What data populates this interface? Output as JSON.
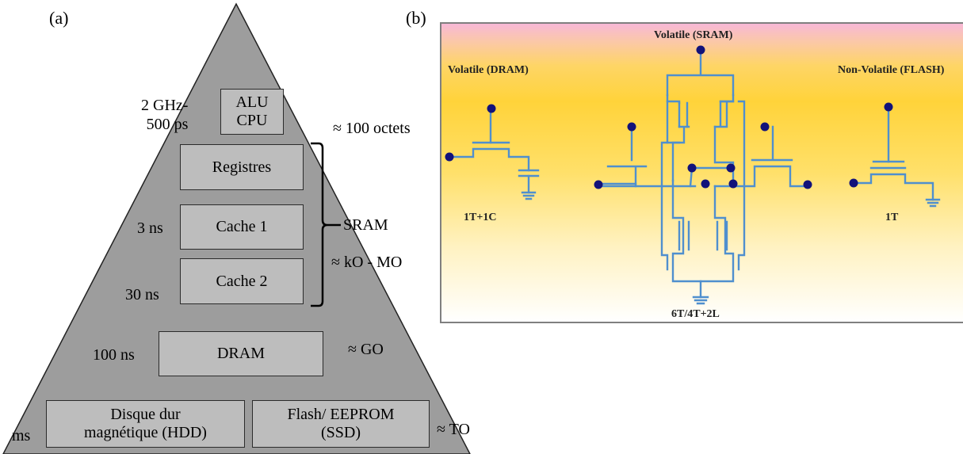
{
  "panel_a": {
    "label": "(a)",
    "levels": [
      {
        "name": "ALU\nCPU",
        "timing": "2 GHz-\n500 ps",
        "capacity": "≈ 100 octets"
      },
      {
        "name": "Registres"
      },
      {
        "name": "Cache 1",
        "timing": "3 ns"
      },
      {
        "name": "Cache 2",
        "timing": "30 ns"
      },
      {
        "name": "DRAM",
        "timing": "100 ns",
        "capacity": "≈ GO"
      },
      {
        "name": "Disque dur\nmagnétique (HDD)",
        "timing": "ms"
      },
      {
        "name": "Flash/ EEPROM\n(SSD)",
        "capacity": "≈ TO"
      }
    ],
    "sram_label": "SRAM",
    "sram_capacity": "≈ kO - MO"
  },
  "panel_b": {
    "label": "(b)",
    "cells": {
      "dram": {
        "title": "Volatile (DRAM)",
        "caption": "1T+1C"
      },
      "sram": {
        "title": "Volatile (SRAM)",
        "caption": "6T/4T+2L"
      },
      "flash": {
        "title": "Non-Volatile (FLASH)",
        "caption": "1T"
      }
    },
    "colors": {
      "wire": "#4f8fce",
      "node": "#12127a"
    }
  }
}
